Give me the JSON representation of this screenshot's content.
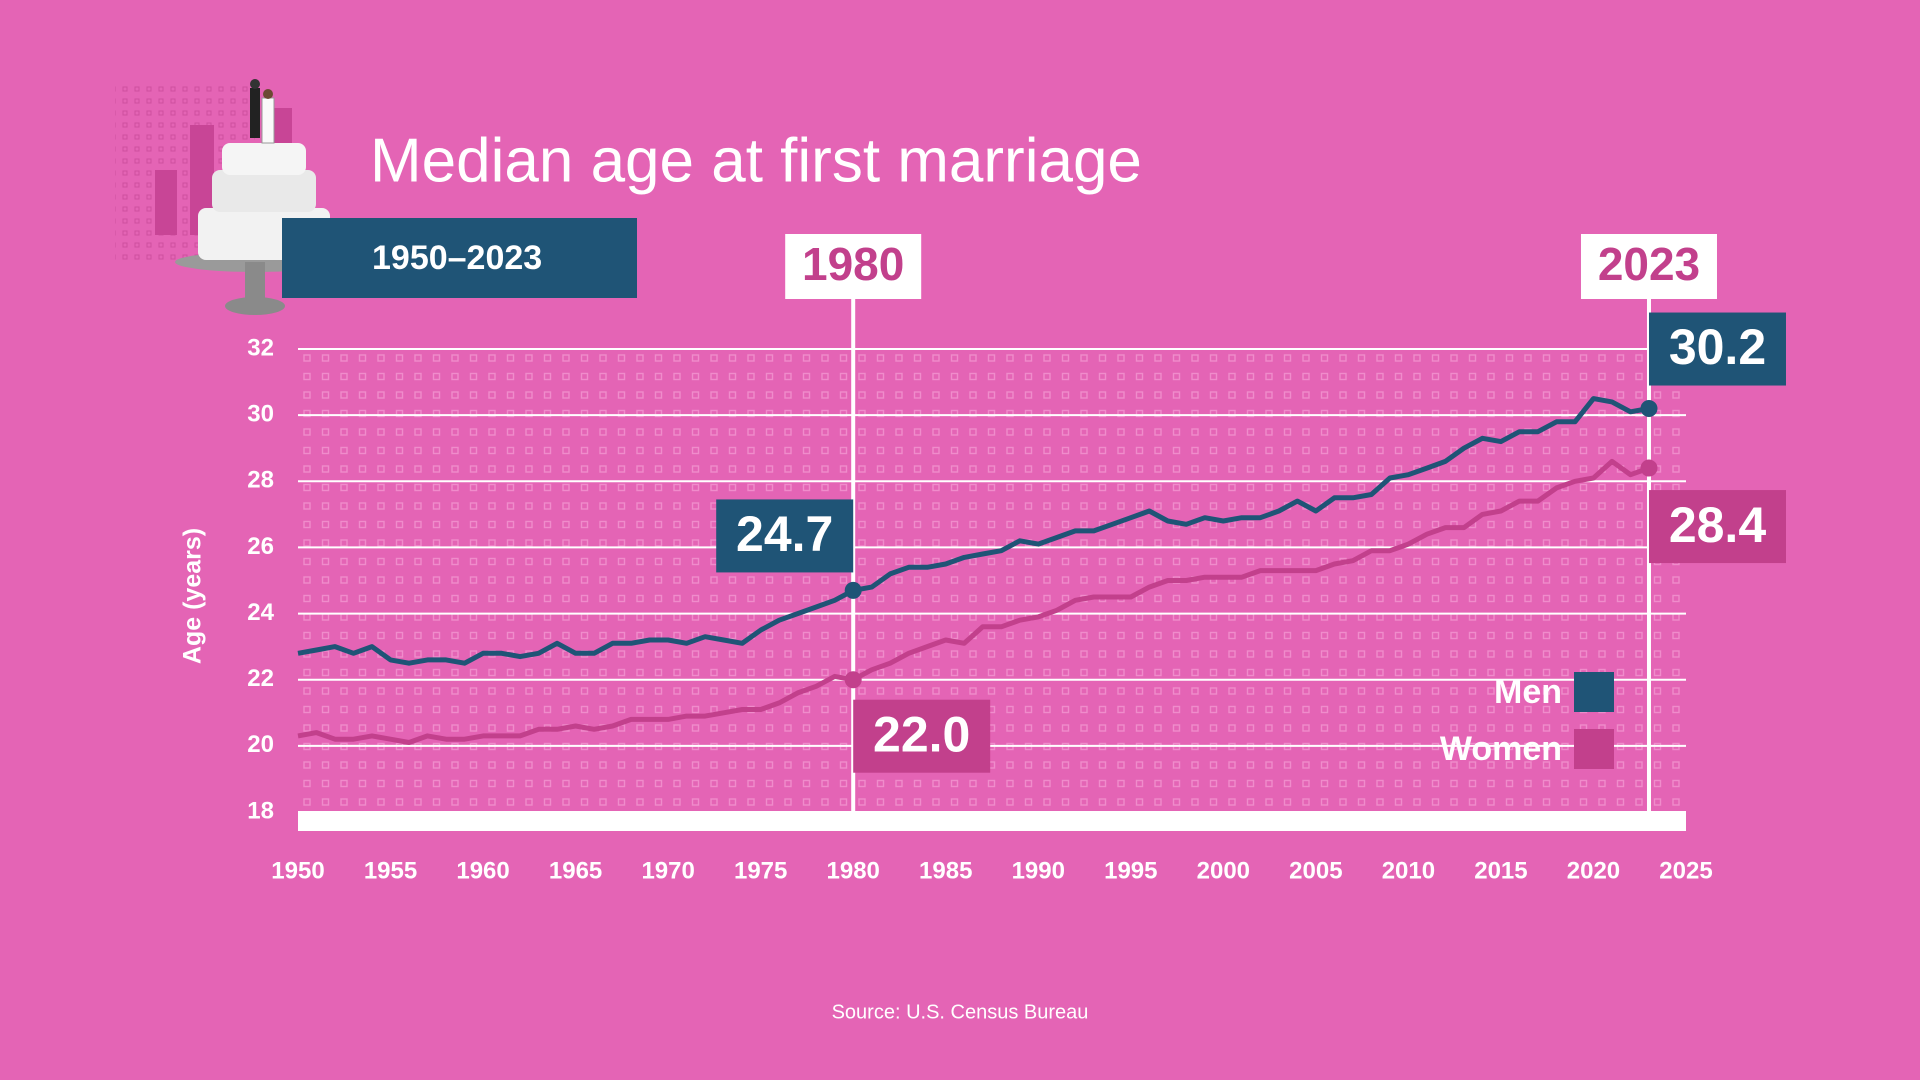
{
  "chart_data": {
    "type": "line",
    "title": "Median age at first marriage",
    "subtitle": "1950–2023",
    "y_label": "Age (years)",
    "source": "Source: U.S. Census Bureau",
    "x": [
      1950,
      1951,
      1952,
      1953,
      1954,
      1955,
      1956,
      1957,
      1958,
      1959,
      1960,
      1961,
      1962,
      1963,
      1964,
      1965,
      1966,
      1967,
      1968,
      1969,
      1970,
      1971,
      1972,
      1973,
      1974,
      1975,
      1976,
      1977,
      1978,
      1979,
      1980,
      1981,
      1982,
      1983,
      1984,
      1985,
      1986,
      1987,
      1988,
      1989,
      1990,
      1991,
      1992,
      1993,
      1994,
      1995,
      1996,
      1997,
      1998,
      1999,
      2000,
      2001,
      2002,
      2003,
      2004,
      2005,
      2006,
      2007,
      2008,
      2009,
      2010,
      2011,
      2012,
      2013,
      2014,
      2015,
      2016,
      2017,
      2018,
      2019,
      2020,
      2021,
      2022,
      2023
    ],
    "series": [
      {
        "name": "Men",
        "color": "#1f5476",
        "values": [
          22.8,
          22.9,
          23.0,
          22.8,
          23.0,
          22.6,
          22.5,
          22.6,
          22.6,
          22.5,
          22.8,
          22.8,
          22.7,
          22.8,
          23.1,
          22.8,
          22.8,
          23.1,
          23.1,
          23.2,
          23.2,
          23.1,
          23.3,
          23.2,
          23.1,
          23.5,
          23.8,
          24.0,
          24.2,
          24.4,
          24.7,
          24.8,
          25.2,
          25.4,
          25.4,
          25.5,
          25.7,
          25.8,
          25.9,
          26.2,
          26.1,
          26.3,
          26.5,
          26.5,
          26.7,
          26.9,
          27.1,
          26.8,
          26.7,
          26.9,
          26.8,
          26.9,
          26.9,
          27.1,
          27.4,
          27.1,
          27.5,
          27.5,
          27.6,
          28.1,
          28.2,
          28.4,
          28.6,
          29.0,
          29.3,
          29.2,
          29.5,
          29.5,
          29.8,
          29.8,
          30.5,
          30.4,
          30.1,
          30.2
        ],
        "value_labels": [
          null,
          null,
          null,
          null,
          null,
          null,
          null,
          null,
          null,
          null,
          null,
          null,
          null,
          null,
          null,
          null,
          null,
          null,
          null,
          null,
          null,
          null,
          null,
          null,
          null,
          null,
          null,
          null,
          null,
          null,
          "24.7",
          null,
          null,
          null,
          null,
          null,
          null,
          null,
          null,
          null,
          null,
          null,
          null,
          null,
          null,
          null,
          null,
          null,
          null,
          null,
          null,
          null,
          null,
          null,
          null,
          null,
          null,
          null,
          null,
          null,
          null,
          null,
          null,
          null,
          null,
          null,
          null,
          null,
          null,
          null,
          null,
          null,
          null,
          "30.2"
        ]
      },
      {
        "name": "Women",
        "color": "#c2408c",
        "values": [
          20.3,
          20.4,
          20.2,
          20.2,
          20.3,
          20.2,
          20.1,
          20.3,
          20.2,
          20.2,
          20.3,
          20.3,
          20.3,
          20.5,
          20.5,
          20.6,
          20.5,
          20.6,
          20.8,
          20.8,
          20.8,
          20.9,
          20.9,
          21.0,
          21.1,
          21.1,
          21.3,
          21.6,
          21.8,
          22.1,
          22.0,
          22.3,
          22.5,
          22.8,
          23.0,
          23.2,
          23.1,
          23.6,
          23.6,
          23.8,
          23.9,
          24.1,
          24.4,
          24.5,
          24.5,
          24.5,
          24.8,
          25.0,
          25.0,
          25.1,
          25.1,
          25.1,
          25.3,
          25.3,
          25.3,
          25.3,
          25.5,
          25.6,
          25.9,
          25.9,
          26.1,
          26.4,
          26.6,
          26.6,
          27.0,
          27.1,
          27.4,
          27.4,
          27.8,
          28.0,
          28.1,
          28.6,
          28.2,
          28.4
        ],
        "value_labels": [
          null,
          null,
          null,
          null,
          null,
          null,
          null,
          null,
          null,
          null,
          null,
          null,
          null,
          null,
          null,
          null,
          null,
          null,
          null,
          null,
          null,
          null,
          null,
          null,
          null,
          null,
          null,
          null,
          null,
          null,
          "22.0",
          null,
          null,
          null,
          null,
          null,
          null,
          null,
          null,
          null,
          null,
          null,
          null,
          null,
          null,
          null,
          null,
          null,
          null,
          null,
          null,
          null,
          null,
          null,
          null,
          null,
          null,
          null,
          null,
          null,
          null,
          null,
          null,
          null,
          null,
          null,
          null,
          null,
          null,
          null,
          null,
          null,
          null,
          "28.4"
        ]
      }
    ],
    "highlight_years": [
      1980,
      2023
    ],
    "xlim": [
      1950,
      2025
    ],
    "xticks": [
      1950,
      1955,
      1960,
      1965,
      1970,
      1975,
      1980,
      1985,
      1990,
      1995,
      2000,
      2005,
      2010,
      2015,
      2020,
      2025
    ],
    "ylim": [
      18,
      32
    ],
    "yticks": [
      18,
      20,
      22,
      24,
      26,
      28,
      30,
      32
    ],
    "grid": true,
    "legend": "lower right"
  }
}
